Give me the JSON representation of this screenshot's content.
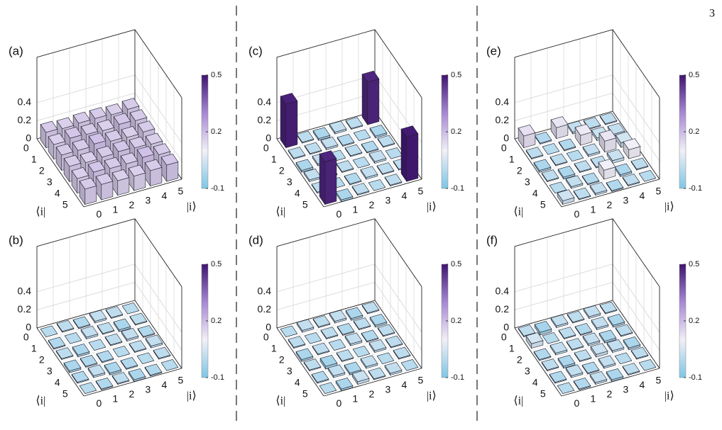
{
  "page_number": "3",
  "chart_data": [
    {
      "type": "bar3d",
      "label": "(a)",
      "xlabel": "|i⟩",
      "ylabel": "⟨i|",
      "xticks": [
        0,
        1,
        2,
        3,
        4,
        5
      ],
      "yticks": [
        0,
        1,
        2,
        3,
        4,
        5
      ],
      "zlim": [
        0,
        0.9
      ],
      "zticks": [
        0,
        0.2,
        0.4
      ],
      "clim": [
        -0.1,
        0.5
      ],
      "cticks": [
        -0.1,
        0.2,
        0.5
      ],
      "colormap": [
        "#7ec6e4",
        "#f1eff7",
        "#a688d3",
        "#3f1470"
      ],
      "grid": true,
      "values": [
        [
          0.17,
          0.16,
          0.17,
          0.17,
          0.16,
          0.17
        ],
        [
          0.16,
          0.18,
          0.17,
          0.16,
          0.18,
          0.17
        ],
        [
          0.17,
          0.17,
          0.19,
          0.17,
          0.16,
          0.17
        ],
        [
          0.17,
          0.16,
          0.17,
          0.18,
          0.17,
          0.16
        ],
        [
          0.16,
          0.18,
          0.17,
          0.17,
          0.19,
          0.17
        ],
        [
          0.17,
          0.17,
          0.16,
          0.16,
          0.17,
          0.18
        ]
      ]
    },
    {
      "type": "bar3d",
      "label": "(c)",
      "xlabel": "|i⟩",
      "ylabel": "⟨i|",
      "xticks": [
        0,
        1,
        2,
        3,
        4,
        5
      ],
      "yticks": [
        0,
        1,
        2,
        3,
        4,
        5
      ],
      "zlim": [
        0,
        0.9
      ],
      "zticks": [
        0,
        0.2,
        0.4
      ],
      "clim": [
        -0.1,
        0.5
      ],
      "cticks": [
        -0.1,
        0.2,
        0.5
      ],
      "colormap": [
        "#7ec6e4",
        "#f1eff7",
        "#a688d3",
        "#3f1470"
      ],
      "grid": true,
      "values": [
        [
          0.48,
          0.01,
          -0.02,
          0.02,
          0.01,
          0.47
        ],
        [
          0.01,
          0.01,
          0.02,
          -0.01,
          0.0,
          -0.02
        ],
        [
          -0.02,
          0.02,
          0.0,
          0.01,
          -0.01,
          0.01
        ],
        [
          0.02,
          -0.01,
          0.01,
          0.0,
          0.02,
          0.0
        ],
        [
          0.01,
          0.0,
          -0.01,
          0.02,
          0.01,
          0.01
        ],
        [
          0.47,
          -0.02,
          0.01,
          0.0,
          0.01,
          0.49
        ]
      ]
    },
    {
      "type": "bar3d",
      "label": "(e)",
      "xlabel": "|i⟩",
      "ylabel": "⟨i|",
      "xticks": [
        0,
        1,
        2,
        3,
        4,
        5
      ],
      "yticks": [
        0,
        1,
        2,
        3,
        4,
        5
      ],
      "zlim": [
        0,
        0.9
      ],
      "zticks": [
        0,
        0.2,
        0.4
      ],
      "clim": [
        -0.1,
        0.5
      ],
      "cticks": [
        -0.1,
        0.2,
        0.5
      ],
      "colormap": [
        "#7ec6e4",
        "#f1eff7",
        "#a688d3",
        "#3f1470"
      ],
      "grid": true,
      "values": [
        [
          0.13,
          -0.01,
          0.12,
          0.02,
          0.01,
          0.01
        ],
        [
          0.01,
          0.0,
          -0.01,
          0.11,
          0.03,
          0.02
        ],
        [
          -0.02,
          0.01,
          0.0,
          0.02,
          0.12,
          0.05
        ],
        [
          0.01,
          -0.02,
          0.01,
          0.01,
          0.03,
          0.1
        ],
        [
          0.0,
          0.02,
          -0.01,
          0.1,
          -0.02,
          0.01
        ],
        [
          0.04,
          0.01,
          0.02,
          -0.01,
          0.01,
          0.0
        ]
      ]
    },
    {
      "type": "bar3d",
      "label": "(b)",
      "xlabel": "|i⟩",
      "ylabel": "⟨i|",
      "xticks": [
        0,
        1,
        2,
        3,
        4,
        5
      ],
      "yticks": [
        0,
        1,
        2,
        3,
        4,
        5
      ],
      "zlim": [
        0,
        0.9
      ],
      "zticks": [
        0,
        0.2,
        0.4
      ],
      "clim": [
        -0.1,
        0.5
      ],
      "cticks": [
        -0.1,
        0.2,
        0.5
      ],
      "colormap": [
        "#7ec6e4",
        "#f1eff7",
        "#a688d3",
        "#3f1470"
      ],
      "grid": true,
      "values": [
        [
          0.0,
          0.01,
          -0.01,
          0.02,
          0.01,
          0.0
        ],
        [
          -0.01,
          0.0,
          0.02,
          0.01,
          -0.02,
          0.01
        ],
        [
          0.01,
          -0.02,
          0.0,
          0.01,
          0.02,
          -0.01
        ],
        [
          -0.02,
          -0.01,
          -0.01,
          0.0,
          0.01,
          0.02
        ],
        [
          -0.01,
          0.02,
          -0.02,
          -0.01,
          0.0,
          0.01
        ],
        [
          0.0,
          -0.01,
          0.01,
          -0.02,
          -0.01,
          0.0
        ]
      ]
    },
    {
      "type": "bar3d",
      "label": "(d)",
      "xlabel": "|i⟩",
      "ylabel": "⟨i|",
      "xticks": [
        0,
        1,
        2,
        3,
        4,
        5
      ],
      "yticks": [
        0,
        1,
        2,
        3,
        4,
        5
      ],
      "zlim": [
        0,
        0.9
      ],
      "zticks": [
        0,
        0.2,
        0.4
      ],
      "clim": [
        -0.1,
        0.5
      ],
      "cticks": [
        -0.1,
        0.2,
        0.5
      ],
      "colormap": [
        "#7ec6e4",
        "#f1eff7",
        "#a688d3",
        "#3f1470"
      ],
      "grid": true,
      "values": [
        [
          0.0,
          0.02,
          0.01,
          0.02,
          -0.02,
          0.01
        ],
        [
          0.01,
          0.0,
          0.01,
          -0.01,
          0.01,
          -0.02
        ],
        [
          -0.02,
          0.01,
          0.0,
          0.02,
          -0.01,
          0.01
        ],
        [
          0.01,
          -0.03,
          0.01,
          0.0,
          0.02,
          0.01
        ],
        [
          -0.01,
          0.02,
          -0.02,
          0.02,
          0.0,
          0.01
        ],
        [
          0.0,
          -0.02,
          0.03,
          0.01,
          0.02,
          0.0
        ]
      ]
    },
    {
      "type": "bar3d",
      "label": "(f)",
      "xlabel": "|i⟩",
      "ylabel": "⟨i|",
      "xticks": [
        0,
        1,
        2,
        3,
        4,
        5
      ],
      "yticks": [
        0,
        1,
        2,
        3,
        4,
        5
      ],
      "zlim": [
        0,
        0.9
      ],
      "zticks": [
        0,
        0.2,
        0.4
      ],
      "clim": [
        -0.1,
        0.5
      ],
      "cticks": [
        -0.1,
        0.2,
        0.5
      ],
      "colormap": [
        "#7ec6e4",
        "#f1eff7",
        "#a688d3",
        "#3f1470"
      ],
      "grid": true,
      "values": [
        [
          0.01,
          -0.03,
          0.02,
          0.01,
          0.02,
          0.01
        ],
        [
          0.05,
          0.0,
          0.01,
          -0.01,
          0.02,
          -0.02
        ],
        [
          -0.01,
          0.02,
          0.01,
          0.02,
          -0.02,
          0.01
        ],
        [
          0.01,
          -0.02,
          0.01,
          0.03,
          0.02,
          -0.02
        ],
        [
          -0.01,
          0.02,
          -0.01,
          0.02,
          0.0,
          0.01
        ],
        [
          0.0,
          -0.01,
          0.02,
          -0.02,
          0.01,
          0.0
        ]
      ]
    }
  ]
}
